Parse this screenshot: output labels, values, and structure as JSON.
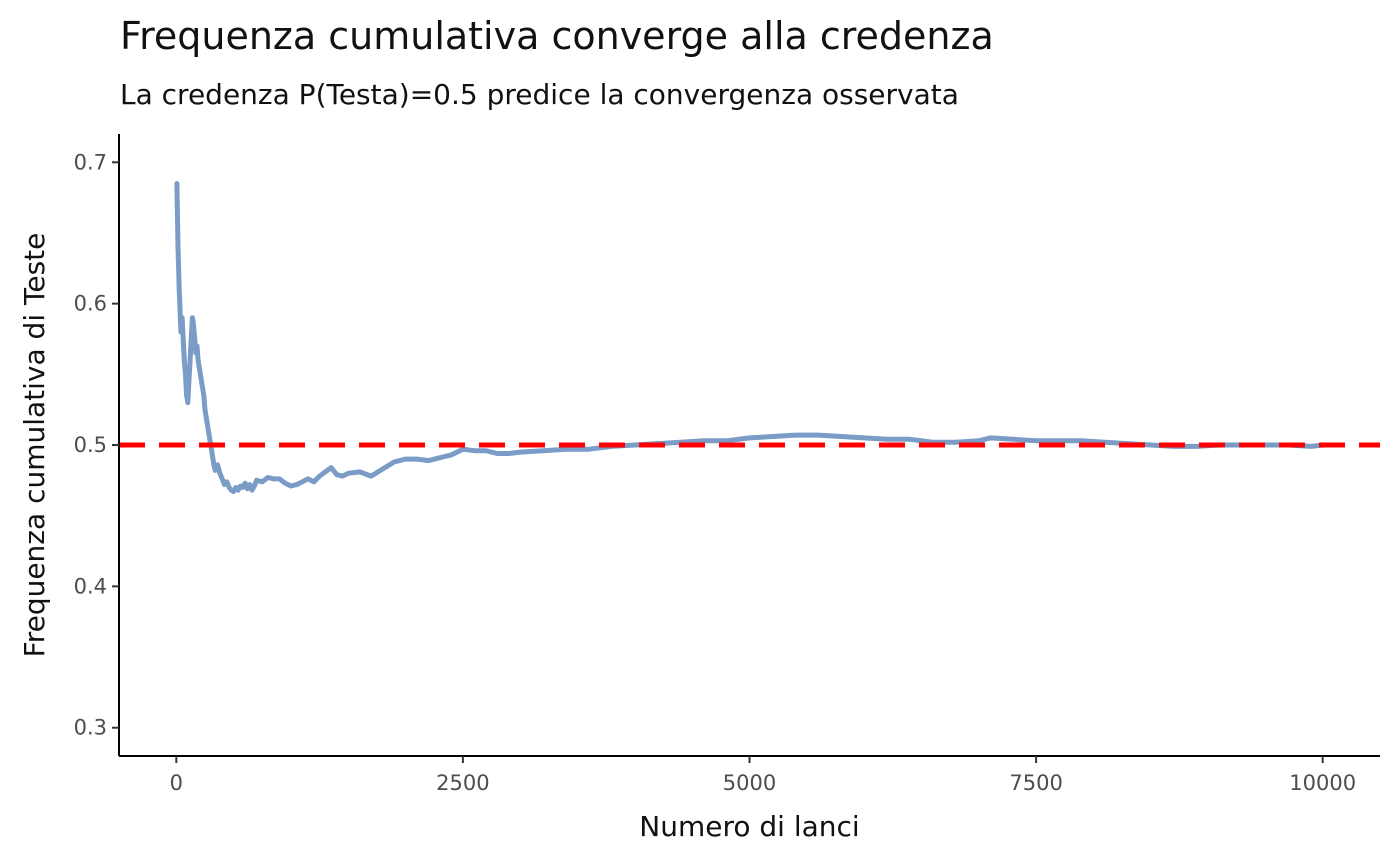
{
  "chart_data": {
    "type": "line",
    "title": "Frequenza cumulativa converge alla credenza",
    "subtitle": "La credenza P(Testa)=0.5 predice la convergenza osservata",
    "xlabel": "Numero di lanci",
    "ylabel": "Frequenza cumulativa di Teste",
    "xlim": [
      -500,
      10500
    ],
    "ylim": [
      0.28,
      0.72
    ],
    "x_ticks": [
      0,
      2500,
      5000,
      7500,
      10000
    ],
    "x_tick_labels": [
      "0",
      "2500",
      "5000",
      "7500",
      "10000"
    ],
    "y_ticks": [
      0.3,
      0.4,
      0.5,
      0.6,
      0.7
    ],
    "y_tick_labels": [
      "0.3",
      "0.4",
      "0.5",
      "0.6",
      "0.7"
    ],
    "grid": false,
    "series": [
      {
        "color": "#7a9cc6",
        "x": [
          5,
          10,
          15,
          20,
          25,
          30,
          40,
          50,
          60,
          70,
          80,
          90,
          100,
          110,
          120,
          130,
          140,
          150,
          160,
          170,
          180,
          190,
          200,
          210,
          220,
          230,
          240,
          250,
          260,
          270,
          280,
          290,
          300,
          310,
          320,
          330,
          340,
          360,
          380,
          400,
          420,
          440,
          460,
          480,
          500,
          520,
          540,
          560,
          580,
          600,
          620,
          640,
          660,
          680,
          700,
          750,
          800,
          850,
          900,
          950,
          1000,
          1050,
          1100,
          1150,
          1200,
          1250,
          1300,
          1350,
          1400,
          1450,
          1500,
          1600,
          1700,
          1800,
          1900,
          2000,
          2100,
          2200,
          2300,
          2400,
          2500,
          2600,
          2700,
          2800,
          2900,
          3000,
          3200,
          3400,
          3600,
          3800,
          4000,
          4200,
          4400,
          4600,
          4800,
          5000,
          5200,
          5400,
          5600,
          5800,
          6000,
          6200,
          6400,
          6600,
          6800,
          7000,
          7100,
          7300,
          7500,
          7700,
          7900,
          8100,
          8300,
          8500,
          8700,
          8900,
          9100,
          9300,
          9500,
          9700,
          9900,
          10000
        ],
        "values": [
          0.685,
          0.66,
          0.64,
          0.625,
          0.61,
          0.6,
          0.58,
          0.59,
          0.575,
          0.56,
          0.55,
          0.535,
          0.53,
          0.545,
          0.56,
          0.575,
          0.59,
          0.585,
          0.575,
          0.565,
          0.57,
          0.56,
          0.555,
          0.55,
          0.545,
          0.54,
          0.535,
          0.525,
          0.52,
          0.515,
          0.51,
          0.505,
          0.5,
          0.495,
          0.49,
          0.485,
          0.482,
          0.486,
          0.48,
          0.476,
          0.472,
          0.474,
          0.47,
          0.468,
          0.467,
          0.47,
          0.468,
          0.471,
          0.47,
          0.473,
          0.469,
          0.472,
          0.468,
          0.471,
          0.475,
          0.474,
          0.477,
          0.476,
          0.476,
          0.473,
          0.471,
          0.472,
          0.474,
          0.476,
          0.474,
          0.478,
          0.481,
          0.484,
          0.479,
          0.478,
          0.48,
          0.481,
          0.478,
          0.483,
          0.488,
          0.49,
          0.49,
          0.489,
          0.491,
          0.493,
          0.497,
          0.496,
          0.496,
          0.494,
          0.494,
          0.495,
          0.496,
          0.497,
          0.497,
          0.499,
          0.5,
          0.501,
          0.502,
          0.503,
          0.503,
          0.505,
          0.506,
          0.507,
          0.507,
          0.506,
          0.505,
          0.504,
          0.504,
          0.502,
          0.502,
          0.503,
          0.505,
          0.504,
          0.503,
          0.503,
          0.503,
          0.502,
          0.501,
          0.5,
          0.499,
          0.499,
          0.5,
          0.5,
          0.5,
          0.5,
          0.499,
          0.5
        ]
      }
    ],
    "reference_line": {
      "y": 0.5,
      "style": "dashed",
      "color": "#ff0000"
    }
  }
}
